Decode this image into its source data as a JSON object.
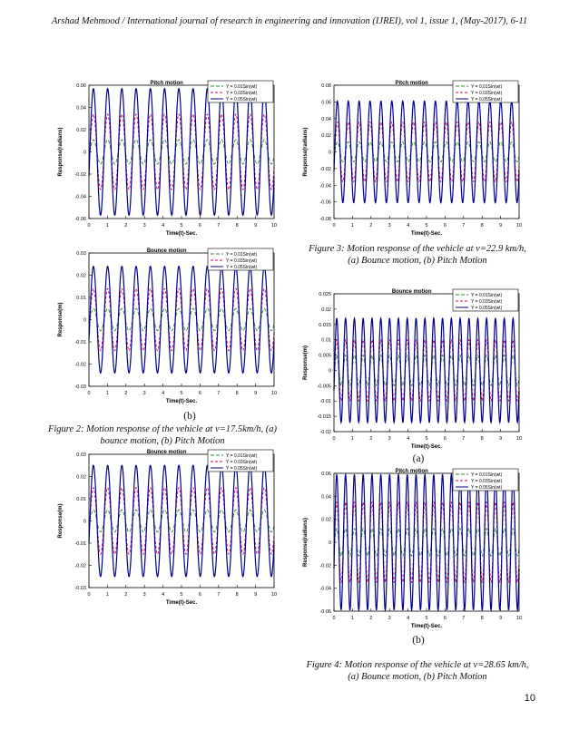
{
  "header": "Arshad Mehmood / International journal of research in engineering and innovation (IJREI), vol 1, issue 1, (May-2017), 6-11",
  "page_number": "10",
  "captions": {
    "fig2_panel": "(b)",
    "fig2_line1": "Figure 2: Motion response of the vehicle at v=17.5km/h, (a)",
    "fig2_line2": "bounce motion, (b) Pitch Motion",
    "fig3_line1": "Figure 3: Motion response of the vehicle at v=22.9 km/h,",
    "fig3_line2": "(a) Bounce motion, (b) Pitch Motion",
    "fig4_panel_a": "(a)",
    "fig4_panel_b": "(b)",
    "fig4_line1": "Figure 4: Motion response of the vehicle at v=28.65 km/h,",
    "fig4_line2": "(a) Bounce motion, (b) Pitch Motion"
  },
  "colors": {
    "y001": "#2e8b2e",
    "y003": "#d4006a",
    "y005": "#00008b"
  },
  "chart_data": [
    {
      "id": "fig1b",
      "type": "line",
      "title": "Pitch motion",
      "xlabel": "Time(t)-Sec.",
      "ylabel": "Response(radians)",
      "xlim": [
        0,
        10
      ],
      "ylim": [
        -0.06,
        0.06
      ],
      "xticks": [
        "0",
        "1",
        "2",
        "3",
        "4",
        "5",
        "6",
        "7",
        "8",
        "9",
        "10"
      ],
      "yticks": [
        "-0.06",
        "-0.04",
        "-0.02",
        "0",
        "0.02",
        "0.04",
        "0.06"
      ],
      "legend": [
        "Y = 0.01Sin(wt)",
        "Y = 0.03Sin(wt)",
        "Y = 0.05Sin(wt)"
      ],
      "frequency_cycles_per_sec": 1.3,
      "series": [
        {
          "name": "Y = 0.01Sin(wt)",
          "amplitude": 0.011
        },
        {
          "name": "Y = 0.03Sin(wt)",
          "amplitude": 0.034
        },
        {
          "name": "Y = 0.05Sin(wt)",
          "amplitude": 0.057
        }
      ]
    },
    {
      "id": "fig2a",
      "type": "line",
      "title": "Bounce motion",
      "xlabel": "Time(t)-Sec.",
      "ylabel": "Response(m)",
      "xlim": [
        0,
        10
      ],
      "ylim": [
        -0.03,
        0.03
      ],
      "xticks": [
        "0",
        "1",
        "2",
        "3",
        "4",
        "5",
        "6",
        "7",
        "8",
        "9",
        "10"
      ],
      "yticks": [
        "-0.03",
        "-0.02",
        "-0.01",
        "0",
        "0.01",
        "0.02",
        "0.03"
      ],
      "legend": [
        "Y = 0.01Sin(wt)",
        "Y = 0.03Sin(wt)",
        "Y = 0.05Sin(wt)"
      ],
      "frequency_cycles_per_sec": 1.3,
      "series": [
        {
          "name": "Y = 0.01Sin(wt)",
          "amplitude": 0.005
        },
        {
          "name": "Y = 0.03Sin(wt)",
          "amplitude": 0.014
        },
        {
          "name": "Y = 0.05Sin(wt)",
          "amplitude": 0.024
        }
      ]
    },
    {
      "id": "fig2b",
      "type": "line",
      "title": "Bounce motion",
      "xlabel": "Time(t)-Sec.",
      "ylabel": "Response(m)",
      "xlim": [
        0,
        10
      ],
      "ylim": [
        -0.03,
        0.03
      ],
      "xticks": [
        "0",
        "1",
        "2",
        "3",
        "4",
        "5",
        "6",
        "7",
        "8",
        "9",
        "10"
      ],
      "yticks": [
        "-0.03",
        "-0.02",
        "-0.01",
        "0",
        "0.01",
        "0.02",
        "0.03"
      ],
      "legend": [
        "Y = 0.01Sin(wt)",
        "Y = 0.03Sin(wt)",
        "Y = 0.05Sin(wt)"
      ],
      "frequency_cycles_per_sec": 1.3,
      "series": [
        {
          "name": "Y = 0.01Sin(wt)",
          "amplitude": 0.005
        },
        {
          "name": "Y = 0.03Sin(wt)",
          "amplitude": 0.015
        },
        {
          "name": "Y = 0.05Sin(wt)",
          "amplitude": 0.025
        }
      ]
    },
    {
      "id": "fig3b",
      "type": "line",
      "title": "Pitch motion",
      "xlabel": "Time(t)-Sec.",
      "ylabel": "Response(radians)",
      "xlim": [
        0,
        10
      ],
      "ylim": [
        -0.08,
        0.08
      ],
      "xticks": [
        "0",
        "1",
        "2",
        "3",
        "4",
        "5",
        "6",
        "7",
        "8",
        "9",
        "10"
      ],
      "yticks": [
        "-0.08",
        "-0.06",
        "-0.04",
        "-0.02",
        "0",
        "0.02",
        "0.04",
        "0.06",
        "0.08"
      ],
      "legend": [
        "Y = 0.01Sin(wt)",
        "Y = 0.03Sin(wt)",
        "Y = 0.05Sin(wt)"
      ],
      "frequency_cycles_per_sec": 1.7,
      "series": [
        {
          "name": "Y = 0.01Sin(wt)",
          "amplitude": 0.012
        },
        {
          "name": "Y = 0.03Sin(wt)",
          "amplitude": 0.036
        },
        {
          "name": "Y = 0.05Sin(wt)",
          "amplitude": 0.061
        }
      ]
    },
    {
      "id": "fig4a",
      "type": "line",
      "title": "Bounce motion",
      "xlabel": "Time(t)-Sec.",
      "ylabel": "Response(m)",
      "xlim": [
        0,
        10
      ],
      "ylim": [
        -0.02,
        0.025
      ],
      "xticks": [
        "0",
        "1",
        "2",
        "3",
        "4",
        "5",
        "6",
        "7",
        "8",
        "9",
        "10"
      ],
      "yticks": [
        "-0.02",
        "-0.015",
        "-0.01",
        "-0.005",
        "0",
        "0.005",
        "0.01",
        "0.015",
        "0.02",
        "0.025"
      ],
      "legend": [
        "Y = 0.01Sin(wt)",
        "Y = 0.03Sin(wt)",
        "Y = 0.05Sin(wt)"
      ],
      "frequency_cycles_per_sec": 2.1,
      "series": [
        {
          "name": "Y = 0.01Sin(wt)",
          "amplitude": 0.005
        },
        {
          "name": "Y = 0.03Sin(wt)",
          "amplitude": 0.01
        },
        {
          "name": "Y = 0.05Sin(wt)",
          "amplitude": 0.017
        }
      ]
    },
    {
      "id": "fig4b",
      "type": "line",
      "title": "Pitch motion",
      "xlabel": "Time(t)-Sec.",
      "ylabel": "Response(radians)",
      "xlim": [
        0,
        10
      ],
      "ylim": [
        -0.06,
        0.06
      ],
      "xticks": [
        "0",
        "1",
        "2",
        "3",
        "4",
        "5",
        "6",
        "7",
        "8",
        "9",
        "10"
      ],
      "yticks": [
        "-0.06",
        "-0.04",
        "-0.02",
        "0",
        "0.02",
        "0.04",
        "0.06"
      ],
      "legend": [
        "Y = 0.01Sin(wt)",
        "Y = 0.03Sin(wt)",
        "Y = 0.05Sin(wt)"
      ],
      "frequency_cycles_per_sec": 2.1,
      "series": [
        {
          "name": "Y = 0.01Sin(wt)",
          "amplitude": 0.012
        },
        {
          "name": "Y = 0.03Sin(wt)",
          "amplitude": 0.035
        },
        {
          "name": "Y = 0.05Sin(wt)",
          "amplitude": 0.059
        }
      ]
    }
  ]
}
